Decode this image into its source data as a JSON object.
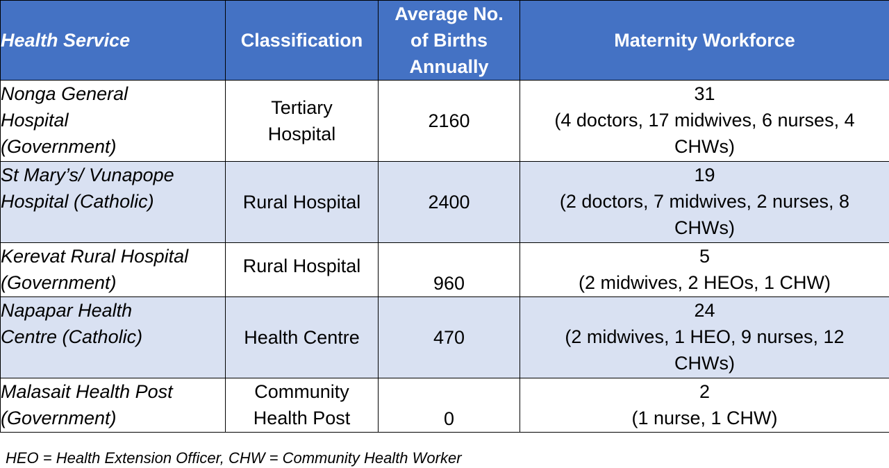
{
  "table": {
    "headers": {
      "service": "Health Service",
      "classification": "Classification",
      "births_line1": "Average No.",
      "births_line2": "of Births",
      "births_line3": "Annually",
      "workforce": "Maternity Workforce"
    },
    "rows": [
      {
        "service_lines": [
          "Nonga General",
          "Hospital",
          "(Government)"
        ],
        "classification_lines": [
          "Tertiary",
          "Hospital"
        ],
        "births": "2160",
        "workforce_lines": [
          "31",
          "(4 doctors, 17 midwives, 6 nurses, 4",
          "CHWs)"
        ]
      },
      {
        "service_lines": [
          "St Mary’s/ Vunapope",
          "Hospital (Catholic)"
        ],
        "classification_lines": [
          "Rural Hospital"
        ],
        "births": "2400",
        "workforce_lines": [
          "19",
          "(2 doctors, 7 midwives, 2 nurses, 8",
          "CHWs)"
        ]
      },
      {
        "service_lines": [
          "Kerevat Rural Hospital",
          "(Government)"
        ],
        "classification_lines": [
          "Rural Hospital"
        ],
        "births": "960",
        "workforce_lines": [
          "5",
          "(2 midwives, 2 HEOs, 1 CHW)"
        ]
      },
      {
        "service_lines": [
          "Napapar Health",
          "Centre (Catholic)"
        ],
        "classification_lines": [
          "Health Centre"
        ],
        "births": "470",
        "workforce_lines": [
          "24",
          "(2 midwives, 1 HEO, 9 nurses, 12",
          "CHWs)"
        ]
      },
      {
        "service_lines": [
          "Malasait Health Post",
          "(Government)"
        ],
        "classification_lines": [
          "Community",
          "Health Post"
        ],
        "births": "0",
        "workforce_lines": [
          "2",
          "(1 nurse, 1 CHW)"
        ]
      }
    ]
  },
  "footnote": "HEO = Health Extension Officer, CHW = Community Health Worker",
  "colors": {
    "header_bg": "#4472c4",
    "header_text": "#ffffff",
    "band_row_bg": "#d9e1f2",
    "border": "#000000"
  }
}
